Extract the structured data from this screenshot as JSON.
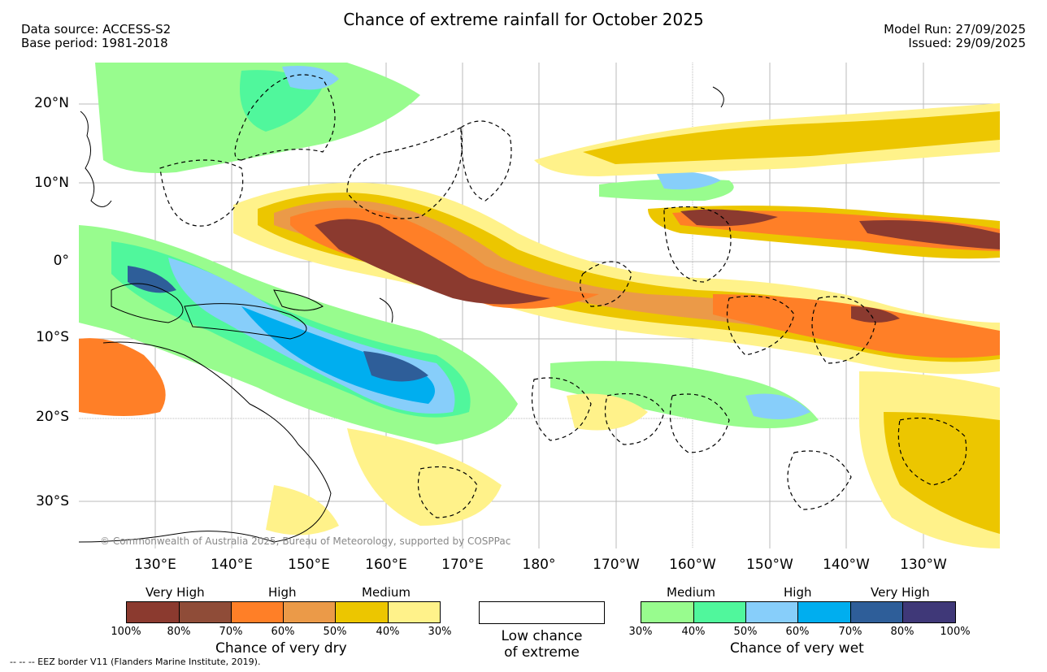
{
  "header": {
    "title": "Chance of extreme rainfall for October 2025",
    "data_source": "Data source: ACCESS-S2",
    "base_period": "Base period: 1981-2018",
    "model_run": "Model Run: 27/09/2025",
    "issued": "Issued: 29/09/2025"
  },
  "map": {
    "lat_labels": [
      "20°N",
      "10°N",
      "0°",
      "10°S",
      "20°S",
      "30°S"
    ],
    "lon_labels": [
      "130°E",
      "140°E",
      "150°E",
      "160°E",
      "170°E",
      "180°",
      "170°W",
      "160°W",
      "150°W",
      "140°W",
      "130°W"
    ],
    "copyright": "© Commonwealth of Australia 2025, Bureau of Meteorology, supported by COSPPac"
  },
  "legend": {
    "dry": {
      "levels": [
        "Very High",
        "High",
        "Medium"
      ],
      "percent_labels": [
        "100%",
        "80%",
        "70%",
        "60%",
        "50%",
        "40%",
        "30%"
      ],
      "colors": [
        "#8b3a2f",
        "#8f4c38",
        "#ff7f27",
        "#eb9a48",
        "#ecc600",
        "#fff28a"
      ],
      "caption": "Chance of very dry"
    },
    "low": {
      "caption_line1": "Low chance",
      "caption_line2": "of extreme"
    },
    "wet": {
      "levels": [
        "Medium",
        "High",
        "Very High"
      ],
      "percent_labels": [
        "30%",
        "40%",
        "50%",
        "60%",
        "70%",
        "80%",
        "100%"
      ],
      "colors": [
        "#98fc8e",
        "#50f79c",
        "#87cefa",
        "#00aeef",
        "#2e5e99",
        "#3f3878"
      ],
      "caption": "Chance of very wet"
    }
  },
  "footer": {
    "eez": "--  --  -- EEZ border V11 (Flanders Marine Institute, 2019)."
  }
}
